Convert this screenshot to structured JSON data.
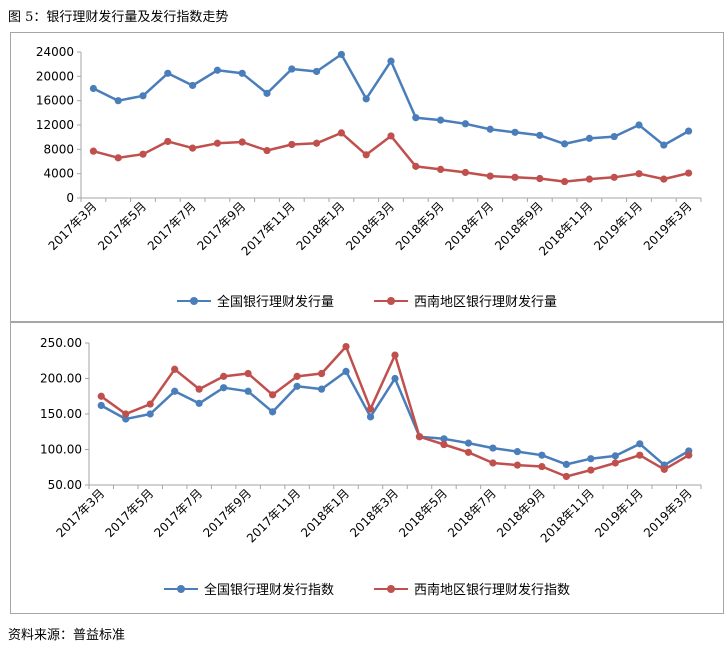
{
  "figure_title": "图 5：银行理财发行量及发行指数走势",
  "source": "资料来源：普益标准",
  "colors": {
    "blue": "#4a7ebb",
    "red": "#c0504d",
    "axis": "#a6a6a6"
  },
  "chart_data": [
    {
      "type": "line",
      "title": "",
      "x": [
        "2017年3月",
        "2017年4月",
        "2017年5月",
        "2017年6月",
        "2017年7月",
        "2017年8月",
        "2017年9月",
        "2017年10月",
        "2017年11月",
        "2017年12月",
        "2018年1月",
        "2018年2月",
        "2018年3月",
        "2018年4月",
        "2018年5月",
        "2018年6月",
        "2018年7月",
        "2018年8月",
        "2018年9月",
        "2018年10月",
        "2018年11月",
        "2018年12月",
        "2019年1月",
        "2019年2月",
        "2019年3月"
      ],
      "xtick_labels": [
        "2017年3月",
        "2017年5月",
        "2017年7月",
        "2017年9月",
        "2017年11月",
        "2018年1月",
        "2018年3月",
        "2018年5月",
        "2018年7月",
        "2018年9月",
        "2018年11月",
        "2019年1月",
        "2019年3月"
      ],
      "ylim": [
        0,
        24000
      ],
      "yticks": [
        0,
        4000,
        8000,
        12000,
        16000,
        20000,
        24000
      ],
      "ytick_labels": [
        "0",
        "4000",
        "8000",
        "12000",
        "16000",
        "20000",
        "24000"
      ],
      "series": [
        {
          "name": "全国银行理财发行量",
          "color": "#4a7ebb",
          "values": [
            18000,
            16000,
            16800,
            20500,
            18500,
            21000,
            20500,
            17200,
            21200,
            20800,
            23600,
            16300,
            22500,
            13200,
            12800,
            12200,
            11300,
            10800,
            10300,
            8900,
            9800,
            10100,
            12000,
            8700,
            11000
          ]
        },
        {
          "name": "西南地区银行理财发行量",
          "color": "#c0504d",
          "values": [
            7700,
            6600,
            7200,
            9300,
            8200,
            9000,
            9200,
            7800,
            8800,
            9000,
            10700,
            7100,
            10200,
            5200,
            4700,
            4200,
            3600,
            3400,
            3200,
            2700,
            3100,
            3400,
            4000,
            3100,
            4100
          ]
        }
      ],
      "legend": [
        "全国银行理财发行量",
        "西南地区银行理财发行量"
      ]
    },
    {
      "type": "line",
      "title": "",
      "x": [
        "2017年3月",
        "2017年4月",
        "2017年5月",
        "2017年6月",
        "2017年7月",
        "2017年8月",
        "2017年9月",
        "2017年10月",
        "2017年11月",
        "2017年12月",
        "2018年1月",
        "2018年2月",
        "2018年3月",
        "2018年4月",
        "2018年5月",
        "2018年6月",
        "2018年7月",
        "2018年8月",
        "2018年9月",
        "2018年10月",
        "2018年11月",
        "2018年12月",
        "2019年1月",
        "2019年2月",
        "2019年3月"
      ],
      "xtick_labels": [
        "2017年3月",
        "2017年5月",
        "2017年7月",
        "2017年9月",
        "2017年11月",
        "2018年1月",
        "2018年3月",
        "2018年5月",
        "2018年7月",
        "2018年9月",
        "2018年11月",
        "2019年1月",
        "2019年3月"
      ],
      "ylim": [
        50,
        250
      ],
      "yticks": [
        50,
        100,
        150,
        200,
        250
      ],
      "ytick_labels": [
        "50.00",
        "100.00",
        "150.00",
        "200.00",
        "250.00"
      ],
      "series": [
        {
          "name": "全国银行理财发行指数",
          "color": "#4a7ebb",
          "values": [
            162,
            143,
            150,
            182,
            165,
            187,
            182,
            153,
            189,
            185,
            210,
            146,
            200,
            118,
            115,
            109,
            102,
            97,
            92,
            79,
            87,
            91,
            108,
            78,
            98
          ]
        },
        {
          "name": "西南地区银行理财发行指数",
          "color": "#c0504d",
          "values": [
            175,
            150,
            164,
            213,
            185,
            203,
            207,
            177,
            203,
            207,
            245,
            157,
            233,
            118,
            107,
            96,
            81,
            78,
            76,
            62,
            71,
            81,
            92,
            72,
            92
          ]
        }
      ],
      "legend": [
        "全国银行理财发行指数",
        "西南地区银行理财发行指数"
      ]
    }
  ]
}
